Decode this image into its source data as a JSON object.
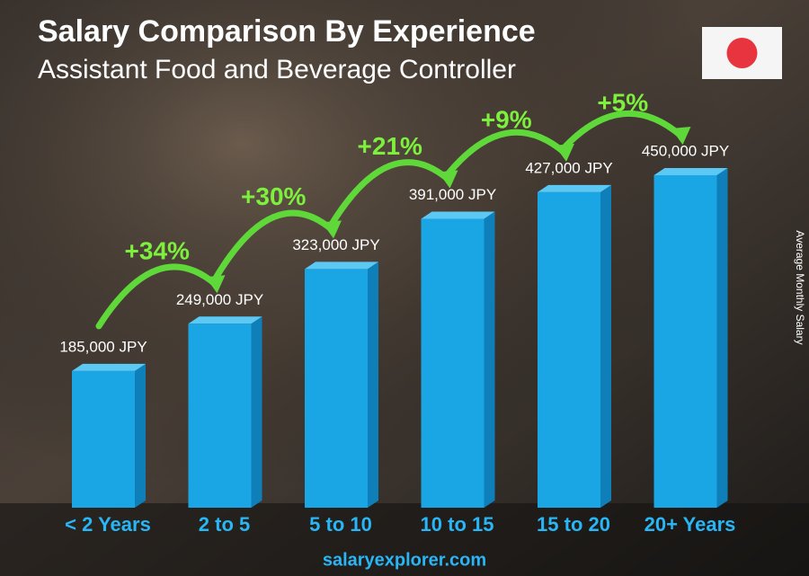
{
  "chart_data": {
    "type": "bar",
    "title": "Salary Comparison By Experience",
    "subtitle": "Assistant Food and Beverage Controller",
    "y_label": "Average Monthly Salary",
    "categories": [
      "< 2 Years",
      "2 to 5",
      "5 to 10",
      "10 to 15",
      "15 to 20",
      "20+ Years"
    ],
    "values": [
      185000,
      249000,
      323000,
      391000,
      427000,
      450000
    ],
    "value_labels": [
      "185,000 JPY",
      "249,000 JPY",
      "323,000 JPY",
      "391,000 JPY",
      "427,000 JPY",
      "450,000 JPY"
    ],
    "changes": [
      {
        "value": 34,
        "label": "+34%"
      },
      {
        "value": 30,
        "label": "+30%"
      },
      {
        "value": 21,
        "label": "+21%"
      },
      {
        "value": 9,
        "label": "+9%"
      },
      {
        "value": 5,
        "label": "+5%"
      }
    ],
    "color": "#1aa6e4",
    "source": "salaryexplorer.com"
  }
}
